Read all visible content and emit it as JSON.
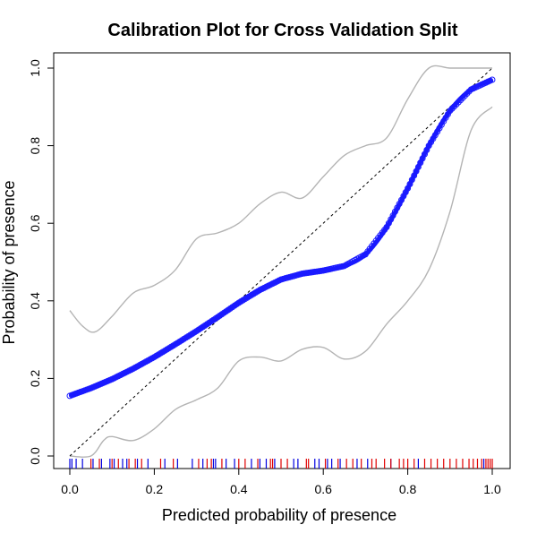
{
  "chart_data": {
    "type": "line",
    "title": "Calibration Plot for Cross Validation Split",
    "xlabel": "Predicted probability of presence",
    "ylabel": "Probability of presence",
    "xlim": [
      0,
      1
    ],
    "ylim": [
      0,
      1
    ],
    "x_ticks": [
      "0.0",
      "0.2",
      "0.4",
      "0.6",
      "0.8",
      "1.0"
    ],
    "y_ticks": [
      "0.0",
      "0.2",
      "0.4",
      "0.6",
      "0.8",
      "1.0"
    ],
    "grid": false,
    "legend": "none",
    "colors": {
      "curve": "#1a1aff",
      "band": "#b4b4b4",
      "reference": "#000000",
      "rug_presence": "#e00000",
      "rug_absence": "#0000e0"
    },
    "series": [
      {
        "role": "calibration-curve",
        "x": [
          0.0,
          0.05,
          0.1,
          0.15,
          0.2,
          0.25,
          0.3,
          0.35,
          0.4,
          0.45,
          0.5,
          0.55,
          0.6,
          0.65,
          0.7,
          0.75,
          0.8,
          0.85,
          0.9,
          0.95,
          1.0
        ],
        "y": [
          0.155,
          0.175,
          0.198,
          0.225,
          0.255,
          0.288,
          0.322,
          0.358,
          0.395,
          0.428,
          0.455,
          0.47,
          0.478,
          0.49,
          0.52,
          0.59,
          0.69,
          0.8,
          0.89,
          0.945,
          0.97
        ]
      },
      {
        "role": "upper-confidence-band",
        "x": [
          0.0,
          0.03,
          0.06,
          0.1,
          0.15,
          0.2,
          0.25,
          0.3,
          0.35,
          0.4,
          0.45,
          0.5,
          0.55,
          0.6,
          0.65,
          0.7,
          0.75,
          0.8,
          0.85,
          0.9,
          0.95,
          1.0
        ],
        "y": [
          0.375,
          0.335,
          0.32,
          0.36,
          0.42,
          0.44,
          0.48,
          0.56,
          0.575,
          0.6,
          0.65,
          0.68,
          0.665,
          0.72,
          0.775,
          0.8,
          0.82,
          0.92,
          1.0,
          1.0,
          1.0,
          1.0
        ]
      },
      {
        "role": "lower-confidence-band",
        "x": [
          0.0,
          0.05,
          0.08,
          0.1,
          0.15,
          0.2,
          0.25,
          0.3,
          0.35,
          0.4,
          0.45,
          0.5,
          0.55,
          0.6,
          0.65,
          0.7,
          0.75,
          0.8,
          0.85,
          0.9,
          0.95,
          1.0
        ],
        "y": [
          0.0,
          0.0,
          0.04,
          0.05,
          0.04,
          0.07,
          0.12,
          0.145,
          0.175,
          0.245,
          0.255,
          0.245,
          0.275,
          0.28,
          0.25,
          0.27,
          0.34,
          0.4,
          0.48,
          0.63,
          0.84,
          0.9
        ]
      },
      {
        "role": "reference-diagonal",
        "x": [
          0,
          1
        ],
        "y": [
          0,
          1
        ]
      }
    ],
    "rug_presence": [
      0.05,
      0.07,
      0.1,
      0.115,
      0.14,
      0.155,
      0.17,
      0.215,
      0.245,
      0.305,
      0.325,
      0.335,
      0.36,
      0.4,
      0.415,
      0.445,
      0.475,
      0.48,
      0.5,
      0.515,
      0.56,
      0.565,
      0.605,
      0.635,
      0.655,
      0.67,
      0.69,
      0.715,
      0.725,
      0.745,
      0.76,
      0.78,
      0.79,
      0.8,
      0.815,
      0.84,
      0.855,
      0.87,
      0.885,
      0.9,
      0.915,
      0.93,
      0.945,
      0.955,
      0.965,
      0.975,
      0.985,
      0.99,
      0.995,
      1.0
    ],
    "rug_absence": [
      0.0,
      0.005,
      0.015,
      0.03,
      0.055,
      0.075,
      0.095,
      0.105,
      0.125,
      0.135,
      0.16,
      0.185,
      0.225,
      0.255,
      0.29,
      0.315,
      0.34,
      0.345,
      0.37,
      0.39,
      0.43,
      0.45,
      0.465,
      0.485,
      0.53,
      0.54,
      0.58,
      0.59,
      0.61,
      0.62,
      0.64,
      0.68,
      0.705,
      0.76,
      0.825,
      0.98
    ]
  }
}
